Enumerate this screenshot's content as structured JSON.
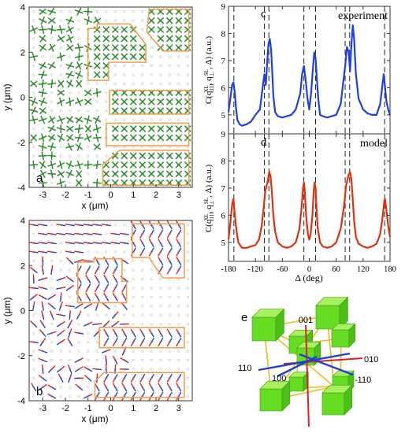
{
  "chart_data": [
    {
      "panel": "a",
      "type": "scatter",
      "xlabel": "x (μm)",
      "ylabel": "y (μm)",
      "xlim": [
        -3.6,
        3.6
      ],
      "ylim": [
        -4,
        4
      ],
      "xticks": [
        "-3",
        "-2",
        "-1",
        "0",
        "1",
        "2",
        "3"
      ],
      "yticks": [
        "-4",
        "-2",
        "0",
        "2",
        "4"
      ],
      "glyph_color": "#2e8b2e",
      "outline_color": "#f0a050",
      "regions": [
        [
          [
            1.7,
            3.9
          ],
          [
            3.45,
            3.9
          ],
          [
            3.45,
            2.05
          ],
          [
            2.3,
            2.05
          ],
          [
            1.6,
            2.9
          ],
          [
            1.7,
            3.9
          ]
        ],
        [
          [
            -1.0,
            3.05
          ],
          [
            -0.6,
            3.05
          ],
          [
            -0.6,
            3.25
          ],
          [
            0.85,
            3.25
          ],
          [
            1.55,
            2.35
          ],
          [
            1.55,
            1.55
          ],
          [
            -0.1,
            1.55
          ],
          [
            -0.1,
            0.75
          ],
          [
            -1.0,
            0.75
          ],
          [
            -1.0,
            3.05
          ]
        ],
        [
          [
            -0.05,
            0.3
          ],
          [
            3.45,
            0.3
          ],
          [
            3.45,
            -0.75
          ],
          [
            -0.05,
            -0.75
          ],
          [
            -0.05,
            0.3
          ]
        ],
        [
          [
            -0.2,
            -1.15
          ],
          [
            3.45,
            -1.15
          ],
          [
            3.45,
            -2.15
          ],
          [
            -0.2,
            -2.15
          ],
          [
            -0.2,
            -1.15
          ]
        ],
        [
          [
            0.4,
            -2.35
          ],
          [
            3.45,
            -2.35
          ],
          [
            3.45,
            -3.9
          ],
          [
            -0.35,
            -3.9
          ],
          [
            -0.35,
            -3.0
          ],
          [
            0.4,
            -2.35
          ]
        ]
      ]
    },
    {
      "panel": "b",
      "type": "scatter",
      "xlabel": "x (μm)",
      "ylabel": "y (μm)",
      "xlim": [
        -3.6,
        3.6
      ],
      "ylim": [
        -4,
        4
      ],
      "xticks": [
        "-3",
        "-2",
        "-1",
        "0",
        "1",
        "2",
        "3"
      ],
      "yticks": [
        "-4",
        "-2",
        "0",
        "2",
        "4"
      ],
      "glyph_colors": [
        "#e02020",
        "#2040d0"
      ],
      "outline_color": "#f0a050",
      "regions": [
        [
          [
            0.95,
            3.85
          ],
          [
            3.25,
            3.85
          ],
          [
            3.25,
            1.45
          ],
          [
            2.3,
            1.45
          ],
          [
            1.7,
            2.35
          ],
          [
            0.95,
            2.35
          ],
          [
            0.95,
            3.85
          ]
        ],
        [
          [
            -1.45,
            2.15
          ],
          [
            -0.75,
            2.15
          ],
          [
            -0.75,
            2.3
          ],
          [
            0.5,
            2.3
          ],
          [
            0.5,
            1.3
          ],
          [
            0.7,
            1.3
          ],
          [
            0.7,
            0.35
          ],
          [
            -1.45,
            0.35
          ],
          [
            -1.45,
            2.15
          ]
        ],
        [
          [
            -0.5,
            -0.75
          ],
          [
            3.25,
            -0.75
          ],
          [
            3.25,
            -1.65
          ],
          [
            -0.5,
            -1.65
          ],
          [
            -0.5,
            -0.75
          ]
        ],
        [
          [
            -0.3,
            -2.75
          ],
          [
            3.25,
            -2.75
          ],
          [
            3.25,
            -3.85
          ],
          [
            -0.7,
            -3.85
          ],
          [
            -0.7,
            -3.15
          ],
          [
            -0.3,
            -2.75
          ]
        ]
      ]
    },
    {
      "panel": "c",
      "type": "line",
      "label": "experiment",
      "xlabel": "Δ (deg)",
      "xlim": [
        -180,
        180
      ],
      "ylim": [
        4.3,
        9
      ],
      "yticks": [
        "5",
        "6",
        "7",
        "8",
        "9"
      ],
      "xticks": [
        "-180",
        "-120",
        "-60",
        "0",
        "60",
        "120",
        "180"
      ],
      "vlines": [
        -168,
        -100,
        -90,
        -12,
        14,
        80,
        90,
        168
      ],
      "series": [
        {
          "color": "#1f3fe6",
          "x": [
            -180,
            -176,
            -172,
            -169,
            -166,
            -163,
            -160,
            -155,
            -150,
            -140,
            -130,
            -120,
            -110,
            -104,
            -100,
            -97,
            -94,
            -91,
            -88,
            -85,
            -82,
            -80,
            -76,
            -70,
            -60,
            -50,
            -40,
            -30,
            -20,
            -16,
            -12,
            -8,
            -4,
            0,
            4,
            8,
            11,
            14,
            17,
            20,
            24,
            30,
            40,
            50,
            60,
            70,
            75,
            80,
            84,
            88,
            91,
            94,
            97,
            100,
            104,
            110,
            120,
            130,
            140,
            150,
            158,
            163,
            166,
            169,
            172,
            176,
            180
          ],
          "y": [
            5.1,
            5.6,
            6.1,
            6.2,
            5.8,
            5.2,
            4.8,
            4.65,
            4.6,
            4.65,
            4.75,
            5.0,
            5.2,
            6.0,
            6.5,
            6.1,
            6.9,
            7.6,
            7.8,
            7.4,
            6.4,
            5.7,
            5.1,
            4.95,
            4.9,
            4.95,
            5.0,
            5.2,
            5.8,
            6.5,
            6.8,
            6.3,
            5.6,
            5.2,
            5.8,
            6.7,
            7.3,
            7.1,
            6.3,
            5.6,
            5.0,
            4.95,
            4.9,
            4.95,
            5.0,
            5.4,
            6.1,
            6.8,
            7.5,
            7.3,
            6.6,
            7.6,
            8.3,
            7.8,
            6.5,
            5.6,
            5.2,
            5.05,
            5.0,
            5.0,
            5.4,
            6.1,
            6.5,
            6.0,
            5.5,
            5.2,
            5.0
          ]
        }
      ]
    },
    {
      "panel": "d",
      "type": "line",
      "label": "model",
      "xlabel": "Δ (deg)",
      "xlim": [
        -180,
        180
      ],
      "ylim": [
        4.3,
        9
      ],
      "yticks": [
        "5",
        "6",
        "7",
        "8",
        "9"
      ],
      "xticks": [
        "-180",
        "-120",
        "-60",
        "0",
        "60",
        "120",
        "180"
      ],
      "vlines": [
        -168,
        -100,
        -90,
        -12,
        14,
        80,
        90,
        168
      ],
      "series": [
        {
          "color": "#e03010",
          "x": [
            -180,
            -176,
            -172,
            -169,
            -166,
            -162,
            -158,
            -150,
            -140,
            -130,
            -120,
            -112,
            -106,
            -102,
            -98,
            -95,
            -92,
            -89,
            -86,
            -83,
            -80,
            -76,
            -70,
            -60,
            -50,
            -40,
            -30,
            -22,
            -17,
            -14,
            -12,
            -10,
            -7,
            -3,
            0,
            3,
            7,
            10,
            12,
            14,
            16,
            19,
            24,
            30,
            40,
            50,
            60,
            70,
            78,
            82,
            85,
            88,
            91,
            94,
            97,
            100,
            104,
            110,
            120,
            130,
            140,
            150,
            158,
            164,
            167,
            169,
            172,
            176,
            180
          ],
          "y": [
            5.1,
            5.7,
            6.4,
            6.6,
            6.0,
            5.4,
            5.0,
            4.8,
            4.8,
            4.85,
            4.9,
            5.1,
            5.6,
            6.2,
            6.9,
            7.1,
            7.3,
            7.6,
            7.4,
            6.8,
            6.0,
            5.4,
            5.0,
            4.85,
            4.8,
            4.85,
            5.0,
            5.5,
            6.3,
            7.0,
            7.2,
            6.9,
            6.0,
            5.3,
            5.1,
            5.3,
            6.0,
            6.9,
            7.2,
            7.0,
            6.3,
            5.5,
            5.0,
            4.85,
            4.8,
            4.85,
            5.0,
            5.5,
            6.4,
            7.1,
            7.3,
            7.5,
            7.6,
            7.3,
            6.6,
            5.8,
            5.2,
            4.95,
            4.85,
            4.8,
            4.85,
            4.95,
            5.3,
            6.0,
            6.5,
            6.6,
            6.2,
            5.6,
            5.2
          ]
        }
      ]
    }
  ],
  "panel_e": {
    "labels": [
      "001",
      "010",
      "110",
      "100",
      "-110"
    ],
    "axis_colors": {
      "001": "#e02020",
      "010": "#e02020",
      "110": "#2040d0",
      "100": "#2040d0",
      "-110": "#2040d0"
    },
    "cube_color": "#66dd22",
    "frame_color": "#e8c020"
  }
}
